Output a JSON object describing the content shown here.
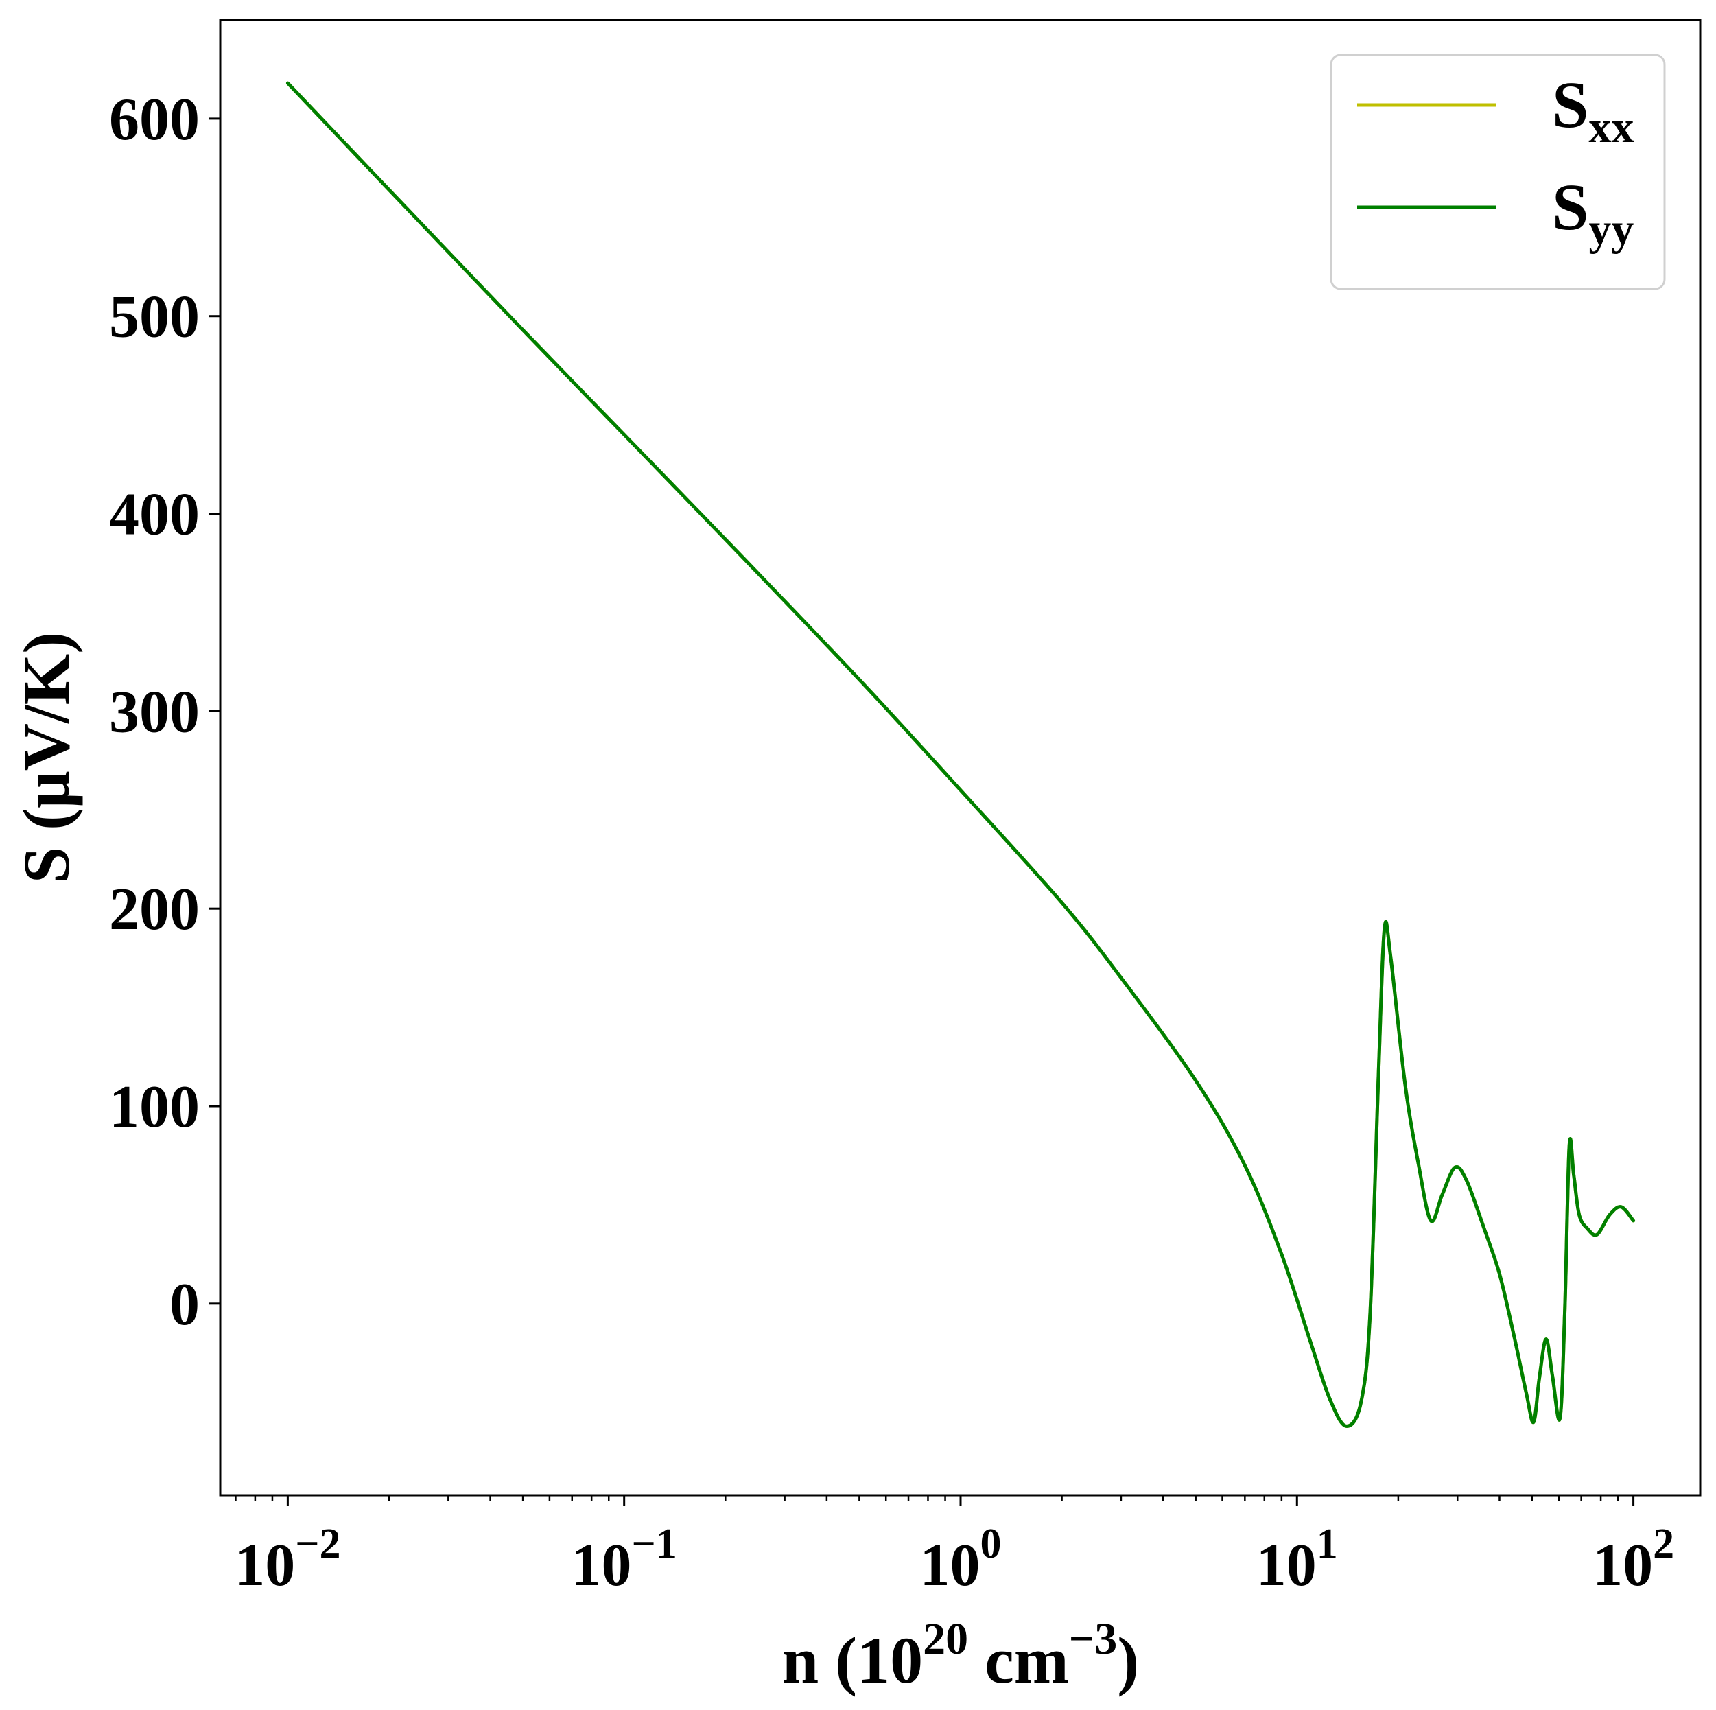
{
  "chart_data": {
    "type": "line",
    "title": "",
    "xlabel": {
      "base": "n (10",
      "exp1": "20",
      "mid": " cm",
      "exp2": "−3",
      "end": ")"
    },
    "ylabel": "S (μV/K)",
    "xscale": "log",
    "xlim": [
      0.0063,
      158
    ],
    "ylim": [
      -97,
      650
    ],
    "x_ticks": [
      {
        "value": 0.01,
        "base": "10",
        "exp": "−2"
      },
      {
        "value": 0.1,
        "base": "10",
        "exp": "−1"
      },
      {
        "value": 1,
        "base": "10",
        "exp": "0"
      },
      {
        "value": 10,
        "base": "10",
        "exp": "1"
      },
      {
        "value": 100,
        "base": "10",
        "exp": "2"
      }
    ],
    "y_ticks": [
      {
        "value": 0,
        "label": "0"
      },
      {
        "value": 100,
        "label": "100"
      },
      {
        "value": 200,
        "label": "200"
      },
      {
        "value": 300,
        "label": "300"
      },
      {
        "value": 400,
        "label": "400"
      },
      {
        "value": 500,
        "label": "500"
      },
      {
        "value": 600,
        "label": "600"
      }
    ],
    "grid": false,
    "legend": {
      "position": "top-right"
    },
    "series": [
      {
        "name": "S",
        "sub": "xx",
        "color": "#bfbf00",
        "points": [
          [
            0.01,
            618
          ],
          [
            0.02,
            564
          ],
          [
            0.05,
            493
          ],
          [
            0.1,
            440
          ],
          [
            0.2,
            387
          ],
          [
            0.5,
            316
          ],
          [
            1,
            260
          ],
          [
            2,
            203
          ],
          [
            3,
            165
          ],
          [
            5,
            113
          ],
          [
            7,
            70
          ],
          [
            9,
            25
          ],
          [
            11,
            -20
          ],
          [
            12.5,
            -48
          ],
          [
            14,
            -62
          ],
          [
            15.5,
            -50
          ],
          [
            16.5,
            -5
          ],
          [
            17.5,
            120
          ],
          [
            18.2,
            190
          ],
          [
            19,
            175
          ],
          [
            21,
            110
          ],
          [
            23,
            70
          ],
          [
            25,
            42
          ],
          [
            27,
            55
          ],
          [
            29.5,
            69
          ],
          [
            32,
            62
          ],
          [
            36,
            38
          ],
          [
            40,
            15
          ],
          [
            44,
            -15
          ],
          [
            48,
            -45
          ],
          [
            50.5,
            -60
          ],
          [
            52.5,
            -38
          ],
          [
            55,
            -18
          ],
          [
            57.5,
            -37
          ],
          [
            60.5,
            -58
          ],
          [
            62.5,
            -5
          ],
          [
            64.5,
            80
          ],
          [
            66.5,
            65
          ],
          [
            69,
            45
          ],
          [
            73,
            38
          ],
          [
            78,
            35
          ],
          [
            85,
            45
          ],
          [
            92,
            49
          ],
          [
            100,
            42
          ]
        ]
      },
      {
        "name": "S",
        "sub": "yy",
        "color": "#008000",
        "points": [
          [
            0.01,
            618
          ],
          [
            0.02,
            564
          ],
          [
            0.05,
            493
          ],
          [
            0.1,
            440
          ],
          [
            0.2,
            387
          ],
          [
            0.5,
            316
          ],
          [
            1,
            260
          ],
          [
            2,
            203
          ],
          [
            3,
            165
          ],
          [
            5,
            113
          ],
          [
            7,
            70
          ],
          [
            9,
            25
          ],
          [
            11,
            -20
          ],
          [
            12.5,
            -48
          ],
          [
            14,
            -62
          ],
          [
            15.5,
            -50
          ],
          [
            16.5,
            -5
          ],
          [
            17.5,
            120
          ],
          [
            18.2,
            190
          ],
          [
            19,
            175
          ],
          [
            21,
            110
          ],
          [
            23,
            70
          ],
          [
            25,
            42
          ],
          [
            27,
            55
          ],
          [
            29.5,
            69
          ],
          [
            32,
            62
          ],
          [
            36,
            38
          ],
          [
            40,
            15
          ],
          [
            44,
            -15
          ],
          [
            48,
            -45
          ],
          [
            50.5,
            -60
          ],
          [
            52.5,
            -38
          ],
          [
            55,
            -18
          ],
          [
            57.5,
            -37
          ],
          [
            60.5,
            -58
          ],
          [
            62.5,
            -5
          ],
          [
            64.5,
            80
          ],
          [
            66.5,
            65
          ],
          [
            69,
            45
          ],
          [
            73,
            38
          ],
          [
            78,
            35
          ],
          [
            85,
            45
          ],
          [
            92,
            49
          ],
          [
            100,
            42
          ]
        ]
      }
    ]
  }
}
